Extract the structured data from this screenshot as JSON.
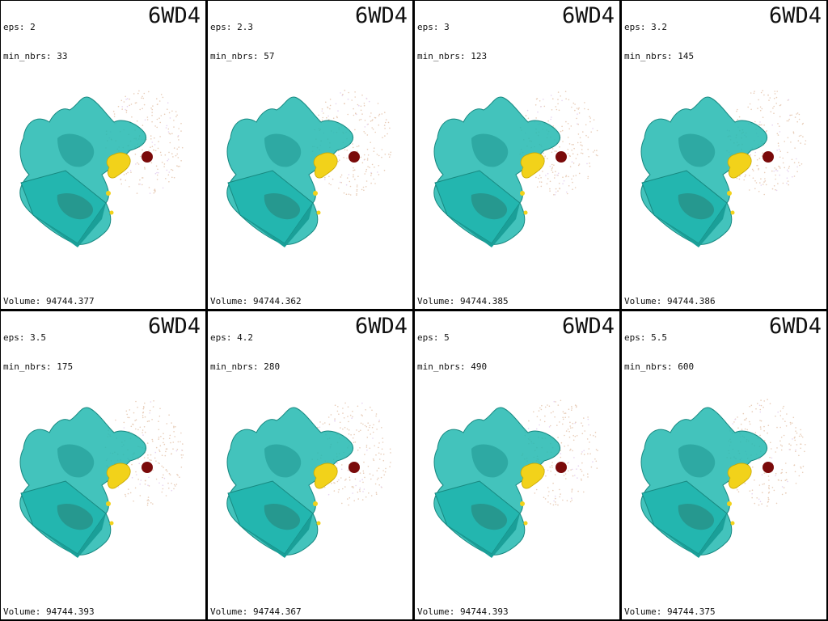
{
  "panels": [
    {
      "eps": "eps: 2",
      "nbrs": "min_nbrs: 33",
      "pdb": "6WD4",
      "volume": "Volume: 94744.377"
    },
    {
      "eps": "eps: 2.3",
      "nbrs": "min_nbrs: 57",
      "pdb": "6WD4",
      "volume": "Volume: 94744.362"
    },
    {
      "eps": "eps: 3",
      "nbrs": "min_nbrs: 123",
      "pdb": "6WD4",
      "volume": "Volume: 94744.385"
    },
    {
      "eps": "eps: 3.2",
      "nbrs": "min_nbrs: 145",
      "pdb": "6WD4",
      "volume": "Volume: 94744.386"
    },
    {
      "eps": "eps: 3.5",
      "nbrs": "min_nbrs: 175",
      "pdb": "6WD4",
      "volume": "Volume: 94744.393"
    },
    {
      "eps": "eps: 4.2",
      "nbrs": "min_nbrs: 280",
      "pdb": "6WD4",
      "volume": "Volume: 94744.367"
    },
    {
      "eps": "eps: 5",
      "nbrs": "min_nbrs: 490",
      "pdb": "6WD4",
      "volume": "Volume: 94744.393"
    },
    {
      "eps": "eps: 5.5",
      "nbrs": "min_nbrs: 600",
      "pdb": "6WD4",
      "volume": "Volume: 94744.375"
    }
  ],
  "colors": {
    "surface": "#22b8b0",
    "surface_dark": "#1a8f8a",
    "ligand": "#f2d21a",
    "ball": "#7a0a0a",
    "points": "#e8cdb8"
  },
  "icons": [
    "molecular-surface-render"
  ]
}
